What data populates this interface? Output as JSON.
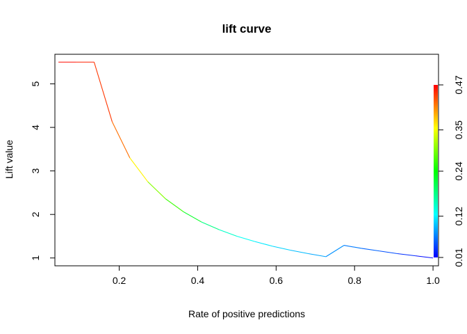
{
  "chart_data": {
    "type": "line",
    "title": "lift curve",
    "xlabel": "Rate of positive predictions",
    "ylabel": "Lift value",
    "xlim": [
      0.036,
      1.014
    ],
    "ylim": [
      0.82,
      5.68
    ],
    "x_ticks": [
      0.2,
      0.4,
      0.6,
      0.8,
      1.0
    ],
    "x_tick_labels": [
      "0.2",
      "0.4",
      "0.6",
      "0.8",
      "1.0"
    ],
    "y_ticks": [
      1,
      2,
      3,
      4,
      5
    ],
    "y_tick_labels": [
      "1",
      "2",
      "3",
      "4",
      "5"
    ],
    "grid": false,
    "legend": "none",
    "colorbar": {
      "placement": "right",
      "min": 0.01,
      "max": 0.47,
      "tick_values": [
        0.01,
        0.12,
        0.24,
        0.35,
        0.47
      ],
      "tick_labels": [
        "0.01",
        "0.12",
        "0.24",
        "0.35",
        "0.47"
      ],
      "colors": [
        "#0000ff",
        "#00ffff",
        "#00ff00",
        "#ffff00",
        "#ff0000"
      ]
    },
    "series": [
      {
        "x": [
          0.045,
          0.09,
          0.136,
          0.182,
          0.227,
          0.273,
          0.318,
          0.364,
          0.409,
          0.455,
          0.5,
          0.545,
          0.591,
          0.636,
          0.682,
          0.727,
          0.773,
          0.818,
          0.864,
          0.909,
          0.955,
          1.0
        ],
        "y": [
          5.5,
          5.5,
          5.5,
          4.13,
          3.3,
          2.75,
          2.36,
          2.06,
          1.83,
          1.65,
          1.5,
          1.38,
          1.27,
          1.18,
          1.1,
          1.03,
          1.29,
          1.22,
          1.16,
          1.1,
          1.05,
          1.0
        ],
        "cutoff": [
          0.47,
          0.46,
          0.45,
          0.44,
          0.4,
          0.32,
          0.28,
          0.25,
          0.2,
          0.16,
          0.14,
          0.12,
          0.11,
          0.1,
          0.09,
          0.08,
          0.07,
          0.06,
          0.05,
          0.04,
          0.02,
          0.01
        ]
      }
    ]
  }
}
